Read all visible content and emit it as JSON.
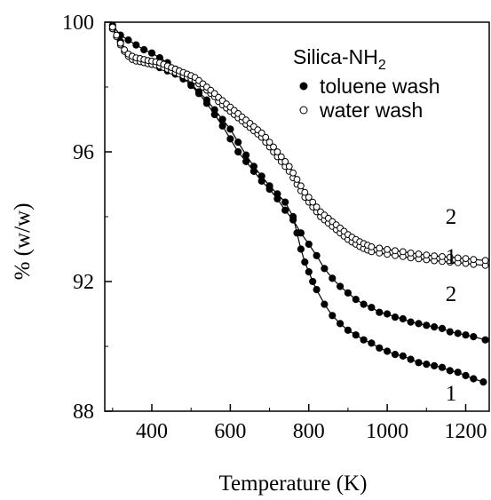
{
  "chart_data": {
    "type": "scatter",
    "title": "",
    "xlabel": "Temperature (K)",
    "ylabel": "% (w/w)",
    "xlim": [
      280,
      1260
    ],
    "ylim": [
      88,
      100
    ],
    "x_ticks": [
      400,
      600,
      800,
      1000,
      1200
    ],
    "y_ticks": [
      88,
      92,
      96,
      100
    ],
    "legend": {
      "title_base": "Silica-NH",
      "title_sub": "2",
      "placement": "top-right",
      "entries": [
        {
          "label": "toluene wash",
          "marker": "filled-circle"
        },
        {
          "label": "water wash",
          "marker": "open-circle"
        }
      ]
    },
    "series": [
      {
        "marker": "filled-circle",
        "end_label": "1",
        "points": [
          [
            300,
            99.8
          ],
          [
            320,
            99.4
          ],
          [
            340,
            99.0
          ],
          [
            360,
            98.85
          ],
          [
            380,
            98.8
          ],
          [
            400,
            98.7
          ],
          [
            420,
            98.6
          ],
          [
            440,
            98.5
          ],
          [
            460,
            98.4
          ],
          [
            480,
            98.25
          ],
          [
            500,
            98.1
          ],
          [
            520,
            97.85
          ],
          [
            540,
            97.6
          ],
          [
            560,
            97.3
          ],
          [
            580,
            97.0
          ],
          [
            600,
            96.7
          ],
          [
            620,
            96.3
          ],
          [
            640,
            95.9
          ],
          [
            660,
            95.55
          ],
          [
            680,
            95.25
          ],
          [
            700,
            94.95
          ],
          [
            720,
            94.7
          ],
          [
            740,
            94.45
          ],
          [
            760,
            94.0
          ],
          [
            770,
            93.5
          ],
          [
            780,
            93.0
          ],
          [
            790,
            92.6
          ],
          [
            800,
            92.3
          ],
          [
            810,
            92.0
          ],
          [
            820,
            91.75
          ],
          [
            840,
            91.3
          ],
          [
            860,
            90.95
          ],
          [
            880,
            90.7
          ],
          [
            900,
            90.5
          ],
          [
            920,
            90.35
          ],
          [
            940,
            90.2
          ],
          [
            960,
            90.1
          ],
          [
            980,
            89.95
          ],
          [
            1000,
            89.85
          ],
          [
            1020,
            89.75
          ],
          [
            1040,
            89.7
          ],
          [
            1060,
            89.6
          ],
          [
            1080,
            89.5
          ],
          [
            1100,
            89.45
          ],
          [
            1120,
            89.4
          ],
          [
            1140,
            89.35
          ],
          [
            1160,
            89.25
          ],
          [
            1180,
            89.2
          ],
          [
            1200,
            89.1
          ],
          [
            1220,
            89.0
          ],
          [
            1245,
            88.9
          ]
        ]
      },
      {
        "marker": "filled-circle",
        "end_label": "2",
        "points": [
          [
            300,
            99.9
          ],
          [
            320,
            99.6
          ],
          [
            340,
            99.45
          ],
          [
            360,
            99.3
          ],
          [
            380,
            99.15
          ],
          [
            400,
            99.05
          ],
          [
            420,
            98.9
          ],
          [
            440,
            98.75
          ],
          [
            460,
            98.55
          ],
          [
            480,
            98.3
          ],
          [
            500,
            98.05
          ],
          [
            520,
            97.8
          ],
          [
            540,
            97.5
          ],
          [
            560,
            97.15
          ],
          [
            580,
            96.8
          ],
          [
            600,
            96.4
          ],
          [
            620,
            96.0
          ],
          [
            640,
            95.7
          ],
          [
            660,
            95.4
          ],
          [
            680,
            95.1
          ],
          [
            700,
            94.85
          ],
          [
            720,
            94.55
          ],
          [
            740,
            94.2
          ],
          [
            760,
            93.9
          ],
          [
            780,
            93.5
          ],
          [
            800,
            93.15
          ],
          [
            820,
            92.8
          ],
          [
            840,
            92.4
          ],
          [
            860,
            92.1
          ],
          [
            880,
            91.85
          ],
          [
            900,
            91.65
          ],
          [
            920,
            91.45
          ],
          [
            940,
            91.3
          ],
          [
            960,
            91.2
          ],
          [
            980,
            91.05
          ],
          [
            1000,
            91.0
          ],
          [
            1020,
            90.9
          ],
          [
            1040,
            90.85
          ],
          [
            1060,
            90.75
          ],
          [
            1080,
            90.7
          ],
          [
            1100,
            90.65
          ],
          [
            1120,
            90.6
          ],
          [
            1140,
            90.55
          ],
          [
            1160,
            90.45
          ],
          [
            1180,
            90.4
          ],
          [
            1200,
            90.35
          ],
          [
            1220,
            90.3
          ],
          [
            1250,
            90.2
          ]
        ]
      },
      {
        "marker": "open-circle",
        "end_label": "1",
        "points": [
          [
            300,
            99.8
          ],
          [
            310,
            99.55
          ],
          [
            320,
            99.3
          ],
          [
            330,
            99.1
          ],
          [
            340,
            98.95
          ],
          [
            350,
            98.85
          ],
          [
            360,
            98.8
          ],
          [
            370,
            98.78
          ],
          [
            380,
            98.75
          ],
          [
            390,
            98.72
          ],
          [
            400,
            98.7
          ],
          [
            410,
            98.68
          ],
          [
            420,
            98.65
          ],
          [
            430,
            98.6
          ],
          [
            440,
            98.55
          ],
          [
            450,
            98.5
          ],
          [
            460,
            98.45
          ],
          [
            470,
            98.4
          ],
          [
            480,
            98.35
          ],
          [
            490,
            98.3
          ],
          [
            500,
            98.25
          ],
          [
            510,
            98.2
          ],
          [
            520,
            98.1
          ],
          [
            530,
            98.0
          ],
          [
            540,
            97.9
          ],
          [
            550,
            97.8
          ],
          [
            560,
            97.7
          ],
          [
            570,
            97.55
          ],
          [
            580,
            97.45
          ],
          [
            590,
            97.35
          ],
          [
            600,
            97.25
          ],
          [
            610,
            97.15
          ],
          [
            620,
            97.05
          ],
          [
            630,
            96.95
          ],
          [
            640,
            96.85
          ],
          [
            650,
            96.75
          ],
          [
            660,
            96.65
          ],
          [
            670,
            96.55
          ],
          [
            680,
            96.45
          ],
          [
            690,
            96.3
          ],
          [
            700,
            96.15
          ],
          [
            710,
            96.0
          ],
          [
            720,
            95.85
          ],
          [
            730,
            95.7
          ],
          [
            740,
            95.55
          ],
          [
            750,
            95.4
          ],
          [
            760,
            95.2
          ],
          [
            770,
            95.0
          ],
          [
            780,
            94.8
          ],
          [
            790,
            94.6
          ],
          [
            800,
            94.45
          ],
          [
            810,
            94.3
          ],
          [
            820,
            94.15
          ],
          [
            830,
            94.0
          ],
          [
            840,
            93.9
          ],
          [
            850,
            93.8
          ],
          [
            860,
            93.7
          ],
          [
            870,
            93.6
          ],
          [
            880,
            93.5
          ],
          [
            890,
            93.4
          ],
          [
            900,
            93.3
          ],
          [
            910,
            93.22
          ],
          [
            920,
            93.15
          ],
          [
            930,
            93.08
          ],
          [
            940,
            93.02
          ],
          [
            950,
            92.97
          ],
          [
            960,
            92.92
          ],
          [
            980,
            92.88
          ],
          [
            1000,
            92.84
          ],
          [
            1020,
            92.8
          ],
          [
            1040,
            92.77
          ],
          [
            1060,
            92.73
          ],
          [
            1080,
            92.7
          ],
          [
            1100,
            92.67
          ],
          [
            1120,
            92.64
          ],
          [
            1140,
            92.62
          ],
          [
            1160,
            92.6
          ],
          [
            1180,
            92.58
          ],
          [
            1200,
            92.56
          ],
          [
            1220,
            92.53
          ],
          [
            1250,
            92.5
          ]
        ]
      },
      {
        "marker": "open-circle",
        "end_label": "2",
        "points": [
          [
            300,
            99.85
          ],
          [
            310,
            99.6
          ],
          [
            320,
            99.35
          ],
          [
            330,
            99.15
          ],
          [
            340,
            99.02
          ],
          [
            350,
            98.95
          ],
          [
            360,
            98.9
          ],
          [
            370,
            98.88
          ],
          [
            380,
            98.85
          ],
          [
            390,
            98.82
          ],
          [
            400,
            98.8
          ],
          [
            410,
            98.78
          ],
          [
            420,
            98.75
          ],
          [
            430,
            98.7
          ],
          [
            440,
            98.65
          ],
          [
            450,
            98.6
          ],
          [
            460,
            98.55
          ],
          [
            470,
            98.5
          ],
          [
            480,
            98.45
          ],
          [
            490,
            98.4
          ],
          [
            500,
            98.35
          ],
          [
            510,
            98.3
          ],
          [
            520,
            98.2
          ],
          [
            530,
            98.1
          ],
          [
            540,
            98.0
          ],
          [
            550,
            97.9
          ],
          [
            560,
            97.8
          ],
          [
            570,
            97.68
          ],
          [
            580,
            97.58
          ],
          [
            590,
            97.48
          ],
          [
            600,
            97.38
          ],
          [
            610,
            97.28
          ],
          [
            620,
            97.18
          ],
          [
            630,
            97.08
          ],
          [
            640,
            96.98
          ],
          [
            650,
            96.88
          ],
          [
            660,
            96.78
          ],
          [
            670,
            96.68
          ],
          [
            680,
            96.58
          ],
          [
            690,
            96.45
          ],
          [
            700,
            96.3
          ],
          [
            710,
            96.15
          ],
          [
            720,
            96.0
          ],
          [
            730,
            95.85
          ],
          [
            740,
            95.7
          ],
          [
            750,
            95.55
          ],
          [
            760,
            95.35
          ],
          [
            770,
            95.15
          ],
          [
            780,
            94.95
          ],
          [
            790,
            94.75
          ],
          [
            800,
            94.6
          ],
          [
            810,
            94.45
          ],
          [
            820,
            94.3
          ],
          [
            830,
            94.15
          ],
          [
            840,
            94.05
          ],
          [
            850,
            93.95
          ],
          [
            860,
            93.85
          ],
          [
            870,
            93.75
          ],
          [
            880,
            93.65
          ],
          [
            890,
            93.55
          ],
          [
            900,
            93.45
          ],
          [
            910,
            93.37
          ],
          [
            920,
            93.3
          ],
          [
            930,
            93.23
          ],
          [
            940,
            93.17
          ],
          [
            950,
            93.12
          ],
          [
            960,
            93.07
          ],
          [
            980,
            93.03
          ],
          [
            1000,
            92.99
          ],
          [
            1020,
            92.95
          ],
          [
            1040,
            92.92
          ],
          [
            1060,
            92.88
          ],
          [
            1080,
            92.85
          ],
          [
            1100,
            92.82
          ],
          [
            1120,
            92.79
          ],
          [
            1140,
            92.77
          ],
          [
            1160,
            92.75
          ],
          [
            1180,
            92.73
          ],
          [
            1200,
            92.71
          ],
          [
            1220,
            92.68
          ],
          [
            1250,
            92.65
          ]
        ]
      }
    ]
  }
}
